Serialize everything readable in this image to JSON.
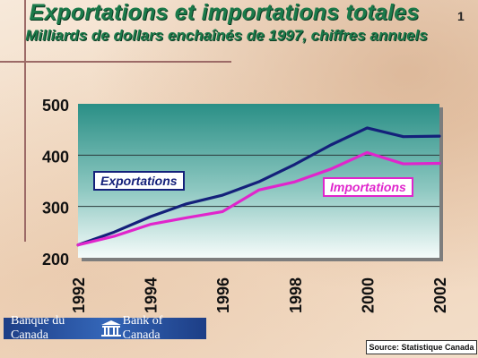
{
  "header": {
    "title": "Exportations et importations totales",
    "subtitle": "Milliards de dollars enchaînés de 1997, chiffres annuels",
    "slide_number": "1"
  },
  "footer": {
    "logo_left": "Banque du Canada",
    "logo_right": "Bank of Canada",
    "source": "Source: Statistique Canada"
  },
  "colors": {
    "exports": "#14207a",
    "imports": "#e025cc",
    "title": "#1b7a4a"
  },
  "chart_data": {
    "type": "line",
    "x": [
      1992,
      1993,
      1994,
      1995,
      1996,
      1997,
      1998,
      1999,
      2000,
      2001,
      2002
    ],
    "x_ticks": [
      "1992",
      "1994",
      "1996",
      "1998",
      "2000",
      "2002"
    ],
    "y_ticks": [
      "200",
      "300",
      "400",
      "500"
    ],
    "ylim": [
      200,
      500
    ],
    "xlim": [
      1992,
      2002
    ],
    "grid": true,
    "series": [
      {
        "name": "Exportations",
        "color": "#14207a",
        "values": [
          225,
          250,
          280,
          305,
          322,
          348,
          382,
          420,
          453,
          436,
          437
        ]
      },
      {
        "name": "Importations",
        "color": "#e025cc",
        "values": [
          225,
          242,
          265,
          278,
          290,
          332,
          348,
          373,
          405,
          383,
          384
        ]
      }
    ]
  }
}
